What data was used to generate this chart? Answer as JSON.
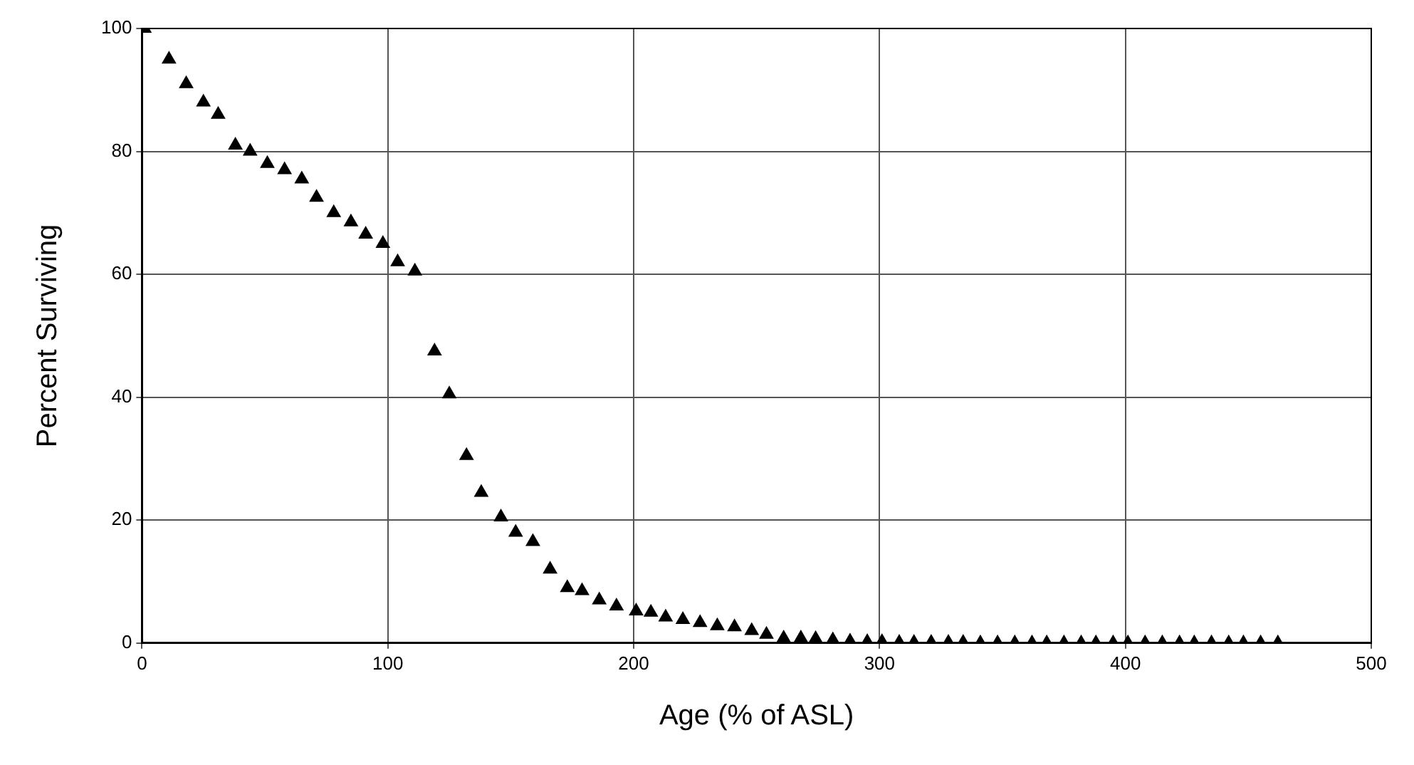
{
  "chart_data": {
    "type": "scatter",
    "xlabel": "Age (% of ASL)",
    "ylabel": "Percent Surviving",
    "xlim": [
      0,
      500
    ],
    "xticks": [
      0,
      100,
      200,
      300,
      400,
      500
    ],
    "ylim": [
      0,
      100
    ],
    "yticks": [
      0,
      20,
      40,
      60,
      80,
      100
    ],
    "grid": true,
    "marker": "triangle",
    "series": [
      {
        "color": "#000000",
        "x": [
          1,
          11,
          18,
          25,
          31,
          38,
          44,
          51,
          58,
          65,
          71,
          78,
          85,
          91,
          98,
          104,
          111,
          119,
          125,
          132,
          138,
          146,
          152,
          159,
          166,
          173,
          179,
          186,
          193,
          201,
          207,
          213,
          220,
          227,
          234,
          241,
          248,
          254,
          261,
          268,
          274,
          281,
          288,
          295,
          301,
          308,
          314,
          321,
          328,
          334,
          341,
          348,
          355,
          362,
          368,
          375,
          382,
          388,
          395,
          401,
          408,
          415,
          422,
          428,
          435,
          442,
          448,
          455,
          462
        ],
        "values": [
          100,
          95,
          91,
          88,
          86,
          81,
          80,
          78,
          77,
          75.5,
          72.5,
          70,
          68.5,
          66.5,
          65,
          62,
          60.5,
          47.5,
          40.5,
          30.5,
          24.5,
          20.5,
          18,
          16.5,
          12,
          9,
          8.5,
          7,
          6,
          5.2,
          5,
          4.2,
          3.8,
          3.3,
          2.8,
          2.6,
          2,
          1.4,
          0.8,
          0.8,
          0.7,
          0.5,
          0.3,
          0.2,
          0.2,
          0.1,
          0.1,
          0.1,
          0.1,
          0.1,
          0,
          0,
          0,
          0,
          0,
          0,
          0,
          0,
          0,
          0,
          0,
          0,
          0,
          0,
          0,
          0,
          0,
          0,
          0
        ]
      }
    ]
  }
}
